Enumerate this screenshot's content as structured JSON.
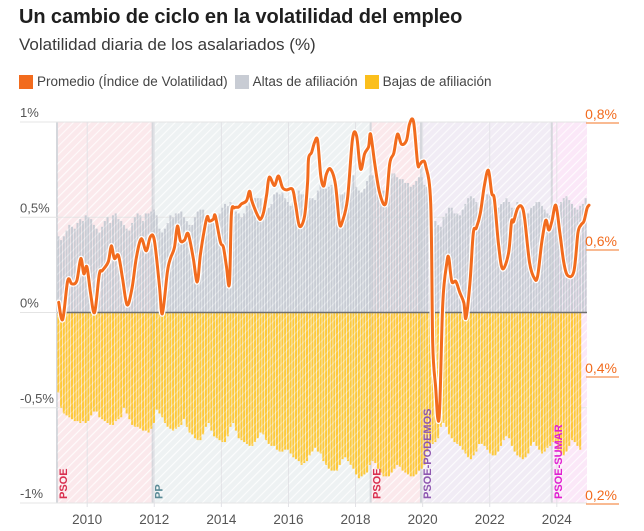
{
  "header": {
    "title": "Un cambio de ciclo en la volatilidad del empleo",
    "subtitle": "Volatilidad diaria de los asalariados (%)"
  },
  "legend": [
    {
      "label": "Promedio (Índice de Volatilidad)",
      "color": "#f26b1d"
    },
    {
      "label": "Altas de afiliación",
      "color": "#c8ccd4"
    },
    {
      "label": "Bajas de afiliación",
      "color": "#fbbf1c"
    }
  ],
  "chart_data": {
    "type": "bar+line",
    "title": "Un cambio de ciclo en la volatilidad del empleo",
    "subtitle": "Volatilidad diaria de los asalariados (%)",
    "x_range": [
      2009.1,
      2024.9
    ],
    "x_ticks": [
      2010,
      2012,
      2014,
      2016,
      2018,
      2020,
      2022,
      2024
    ],
    "left_axis": {
      "ticks": [
        1,
        0.5,
        0,
        -0.5,
        -1
      ],
      "tick_labels": [
        "1%",
        "0,5%",
        "0%",
        "-0,5%",
        "-1%"
      ],
      "range": [
        -1,
        1
      ]
    },
    "right_axis": {
      "ticks": [
        0.8,
        0.6,
        0.4,
        0.2
      ],
      "tick_labels": [
        "0,8%",
        "0,6%",
        "0,4%",
        "0,2%"
      ],
      "range": [
        0.2,
        0.8
      ],
      "color": "#f26b1d"
    },
    "grid": true,
    "legend_position": "top-left",
    "periods": [
      {
        "label": "PSOE",
        "start": 2009.1,
        "end": 2011.95,
        "color": "#d9304f",
        "shade": "#fbe9ec"
      },
      {
        "label": "PP",
        "start": 2011.95,
        "end": 2018.45,
        "color": "#5a8a96",
        "shade": "#eef2f3"
      },
      {
        "label": "PSOE",
        "start": 2018.45,
        "end": 2019.95,
        "color": "#d9304f",
        "shade": "#fbe9ec"
      },
      {
        "label": "PSOE-PODEMOS",
        "start": 2019.95,
        "end": 2023.85,
        "color": "#8e57b0",
        "shade": "#f1ecf5"
      },
      {
        "label": "PSOE-SUMAR",
        "start": 2023.85,
        "end": 2024.9,
        "color": "#e01fd0",
        "shade": "#fbe8f8"
      }
    ],
    "series": [
      {
        "name": "Altas de afiliación",
        "type": "bar",
        "axis": "left",
        "start": 2009.1,
        "step_years": 0.08333,
        "values": [
          0.4,
          0.38,
          0.4,
          0.43,
          0.46,
          0.45,
          0.44,
          0.47,
          0.49,
          0.48,
          0.51,
          0.5,
          0.49,
          0.46,
          0.44,
          0.42,
          0.45,
          0.48,
          0.5,
          0.47,
          0.51,
          0.52,
          0.49,
          0.48,
          0.46,
          0.44,
          0.43,
          0.47,
          0.5,
          0.52,
          0.51,
          0.48,
          0.52,
          0.52,
          0.53,
          0.54,
          0.51,
          0.44,
          0.42,
          0.44,
          0.47,
          0.51,
          0.5,
          0.52,
          0.52,
          0.53,
          0.5,
          0.48,
          0.46,
          0.46,
          0.5,
          0.53,
          0.54,
          0.54,
          0.51,
          0.49,
          0.48,
          0.47,
          0.46,
          0.52,
          0.55,
          0.57,
          0.56,
          0.58,
          0.57,
          0.53,
          0.52,
          0.5,
          0.52,
          0.56,
          0.61,
          0.62,
          0.6,
          0.6,
          0.6,
          0.55,
          0.54,
          0.55,
          0.57,
          0.62,
          0.63,
          0.62,
          0.63,
          0.6,
          0.58,
          0.56,
          0.58,
          0.62,
          0.64,
          0.62,
          0.62,
          0.62,
          0.6,
          0.6,
          0.59,
          0.64,
          0.68,
          0.67,
          0.65,
          0.66,
          0.67,
          0.68,
          0.66,
          0.62,
          0.62,
          0.63,
          0.66,
          0.7,
          0.72,
          0.66,
          0.64,
          0.63,
          0.65,
          0.69,
          0.72,
          0.72,
          0.7,
          0.66,
          0.66,
          0.64,
          0.66,
          0.68,
          0.73,
          0.73,
          0.71,
          0.7,
          0.7,
          0.68,
          0.68,
          0.66,
          0.67,
          0.69,
          0.71,
          0.71,
          0.67,
          0.66,
          0.66,
          0.57,
          0.48,
          0.46,
          0.45,
          0.5,
          0.52,
          0.55,
          0.55,
          0.52,
          0.52,
          0.51,
          0.54,
          0.57,
          0.6,
          0.61,
          0.6,
          0.58,
          0.55,
          0.57,
          0.59,
          0.62,
          0.65,
          0.6,
          0.57,
          0.55,
          0.57,
          0.58,
          0.6,
          0.58,
          0.55,
          0.55,
          0.58,
          0.57,
          0.55,
          0.53,
          0.52,
          0.55,
          0.56,
          0.58,
          0.58,
          0.56,
          0.54,
          0.52,
          0.51,
          0.52,
          0.55,
          0.56,
          0.58,
          0.6,
          0.61,
          0.59,
          0.57,
          0.55,
          0.54,
          0.56,
          0.57,
          0.6
        ]
      },
      {
        "name": "Bajas de afiliación",
        "type": "bar",
        "axis": "left",
        "start": 2009.1,
        "step_years": 0.08333,
        "values": [
          -0.42,
          -0.5,
          -0.53,
          -0.54,
          -0.55,
          -0.56,
          -0.57,
          -0.57,
          -0.58,
          -0.57,
          -0.58,
          -0.57,
          -0.54,
          -0.52,
          -0.52,
          -0.55,
          -0.56,
          -0.57,
          -0.58,
          -0.59,
          -0.59,
          -0.57,
          -0.56,
          -0.55,
          -0.5,
          -0.53,
          -0.56,
          -0.59,
          -0.6,
          -0.6,
          -0.61,
          -0.62,
          -0.62,
          -0.63,
          -0.61,
          -0.58,
          -0.51,
          -0.53,
          -0.55,
          -0.58,
          -0.6,
          -0.61,
          -0.62,
          -0.61,
          -0.6,
          -0.59,
          -0.56,
          -0.6,
          -0.63,
          -0.64,
          -0.66,
          -0.67,
          -0.67,
          -0.64,
          -0.6,
          -0.58,
          -0.62,
          -0.65,
          -0.66,
          -0.67,
          -0.68,
          -0.68,
          -0.65,
          -0.6,
          -0.58,
          -0.62,
          -0.66,
          -0.67,
          -0.68,
          -0.69,
          -0.7,
          -0.7,
          -0.68,
          -0.66,
          -0.63,
          -0.64,
          -0.67,
          -0.69,
          -0.7,
          -0.7,
          -0.72,
          -0.73,
          -0.73,
          -0.72,
          -0.72,
          -0.74,
          -0.76,
          -0.77,
          -0.78,
          -0.8,
          -0.79,
          -0.78,
          -0.75,
          -0.73,
          -0.71,
          -0.73,
          -0.74,
          -0.78,
          -0.8,
          -0.82,
          -0.83,
          -0.83,
          -0.83,
          -0.8,
          -0.77,
          -0.76,
          -0.78,
          -0.8,
          -0.82,
          -0.85,
          -0.87,
          -0.86,
          -0.85,
          -0.84,
          -0.8,
          -0.78,
          -0.79,
          -0.82,
          -0.84,
          -0.86,
          -0.86,
          -0.86,
          -0.84,
          -0.82,
          -0.8,
          -0.81,
          -0.83,
          -0.84,
          -0.85,
          -0.86,
          -0.86,
          -0.85,
          -0.83,
          -0.82,
          -0.8,
          -0.73,
          -0.7,
          -0.69,
          -0.68,
          -0.66,
          -0.6,
          -0.58,
          -0.6,
          -0.64,
          -0.66,
          -0.68,
          -0.69,
          -0.7,
          -0.72,
          -0.74,
          -0.76,
          -0.77,
          -0.75,
          -0.73,
          -0.69,
          -0.69,
          -0.7,
          -0.72,
          -0.74,
          -0.75,
          -0.75,
          -0.73,
          -0.7,
          -0.67,
          -0.65,
          -0.66,
          -0.7,
          -0.73,
          -0.75,
          -0.76,
          -0.77,
          -0.76,
          -0.74,
          -0.7,
          -0.68,
          -0.7,
          -0.72,
          -0.74,
          -0.73,
          -0.71,
          -0.7,
          -0.68,
          -0.68,
          -0.72,
          -0.74,
          -0.75,
          -0.73,
          -0.7,
          -0.67,
          -0.68,
          -0.7,
          -0.72
        ]
      },
      {
        "name": "Promedio (Índice de Volatilidad)",
        "type": "line",
        "axis": "right",
        "color": "#f26b1d",
        "points": [
          [
            2009.15,
            0.516
          ],
          [
            2009.27,
            0.489
          ],
          [
            2009.42,
            0.55
          ],
          [
            2009.54,
            0.545
          ],
          [
            2009.69,
            0.55
          ],
          [
            2009.81,
            0.585
          ],
          [
            2009.9,
            0.561
          ],
          [
            2009.99,
            0.572
          ],
          [
            2010.1,
            0.531
          ],
          [
            2010.22,
            0.5
          ],
          [
            2010.36,
            0.56
          ],
          [
            2010.45,
            0.566
          ],
          [
            2010.63,
            0.58
          ],
          [
            2010.72,
            0.605
          ],
          [
            2010.81,
            0.585
          ],
          [
            2010.93,
            0.59
          ],
          [
            2011.05,
            0.555
          ],
          [
            2011.19,
            0.512
          ],
          [
            2011.34,
            0.539
          ],
          [
            2011.46,
            0.585
          ],
          [
            2011.61,
            0.616
          ],
          [
            2011.76,
            0.597
          ],
          [
            2011.88,
            0.619
          ],
          [
            2012.0,
            0.614
          ],
          [
            2012.15,
            0.544
          ],
          [
            2012.24,
            0.498
          ],
          [
            2012.39,
            0.564
          ],
          [
            2012.48,
            0.585
          ],
          [
            2012.6,
            0.602
          ],
          [
            2012.69,
            0.636
          ],
          [
            2012.78,
            0.613
          ],
          [
            2012.9,
            0.614
          ],
          [
            2013.01,
            0.624
          ],
          [
            2013.16,
            0.586
          ],
          [
            2013.28,
            0.548
          ],
          [
            2013.37,
            0.589
          ],
          [
            2013.49,
            0.63
          ],
          [
            2013.58,
            0.651
          ],
          [
            2013.64,
            0.644
          ],
          [
            2013.76,
            0.647
          ],
          [
            2013.82,
            0.652
          ],
          [
            2013.97,
            0.611
          ],
          [
            2014.06,
            0.603
          ],
          [
            2014.15,
            0.573
          ],
          [
            2014.24,
            0.545
          ],
          [
            2014.3,
            0.655
          ],
          [
            2014.39,
            0.665
          ],
          [
            2014.51,
            0.666
          ],
          [
            2014.6,
            0.671
          ],
          [
            2014.75,
            0.676
          ],
          [
            2014.84,
            0.691
          ],
          [
            2014.9,
            0.677
          ],
          [
            2015.02,
            0.66
          ],
          [
            2015.11,
            0.65
          ],
          [
            2015.17,
            0.647
          ],
          [
            2015.26,
            0.658
          ],
          [
            2015.35,
            0.686
          ],
          [
            2015.43,
            0.713
          ],
          [
            2015.58,
            0.7
          ],
          [
            2015.7,
            0.715
          ],
          [
            2015.82,
            0.697
          ],
          [
            2015.94,
            0.693
          ],
          [
            2016.12,
            0.694
          ],
          [
            2016.21,
            0.671
          ],
          [
            2016.33,
            0.636
          ],
          [
            2016.48,
            0.652
          ],
          [
            2016.57,
            0.705
          ],
          [
            2016.6,
            0.743
          ],
          [
            2016.69,
            0.752
          ],
          [
            2016.78,
            0.768
          ],
          [
            2016.87,
            0.771
          ],
          [
            2016.96,
            0.716
          ],
          [
            2017.05,
            0.699
          ],
          [
            2017.13,
            0.718
          ],
          [
            2017.25,
            0.726
          ],
          [
            2017.4,
            0.702
          ],
          [
            2017.52,
            0.641
          ],
          [
            2017.61,
            0.644
          ],
          [
            2017.76,
            0.679
          ],
          [
            2017.91,
            0.773
          ],
          [
            2018.03,
            0.778
          ],
          [
            2018.15,
            0.726
          ],
          [
            2018.27,
            0.75
          ],
          [
            2018.39,
            0.761
          ],
          [
            2018.45,
            0.781
          ],
          [
            2018.57,
            0.735
          ],
          [
            2018.72,
            0.688
          ],
          [
            2018.9,
            0.672
          ],
          [
            2019.02,
            0.735
          ],
          [
            2019.14,
            0.751
          ],
          [
            2019.25,
            0.781
          ],
          [
            2019.37,
            0.765
          ],
          [
            2019.52,
            0.771
          ],
          [
            2019.61,
            0.797
          ],
          [
            2019.73,
            0.8
          ],
          [
            2019.85,
            0.735
          ],
          [
            2019.91,
            0.733
          ],
          [
            2020.0,
            0.738
          ],
          [
            2020.09,
            0.731
          ],
          [
            2020.24,
            0.672
          ],
          [
            2020.3,
            0.452
          ],
          [
            2020.39,
            0.381
          ],
          [
            2020.45,
            0.334
          ],
          [
            2020.51,
            0.35
          ],
          [
            2020.6,
            0.515
          ],
          [
            2020.72,
            0.578
          ],
          [
            2020.78,
            0.586
          ],
          [
            2020.87,
            0.549
          ],
          [
            2020.99,
            0.549
          ],
          [
            2021.11,
            0.531
          ],
          [
            2021.23,
            0.515
          ],
          [
            2021.29,
            0.491
          ],
          [
            2021.41,
            0.546
          ],
          [
            2021.51,
            0.625
          ],
          [
            2021.6,
            0.633
          ],
          [
            2021.72,
            0.656
          ],
          [
            2021.84,
            0.7
          ],
          [
            2021.96,
            0.724
          ],
          [
            2022.06,
            0.688
          ],
          [
            2022.14,
            0.678
          ],
          [
            2022.26,
            0.609
          ],
          [
            2022.38,
            0.569
          ],
          [
            2022.56,
            0.593
          ],
          [
            2022.65,
            0.643
          ],
          [
            2022.71,
            0.643
          ],
          [
            2022.83,
            0.664
          ],
          [
            2022.95,
            0.667
          ],
          [
            2023.04,
            0.648
          ],
          [
            2023.19,
            0.578
          ],
          [
            2023.34,
            0.553
          ],
          [
            2023.43,
            0.558
          ],
          [
            2023.55,
            0.61
          ],
          [
            2023.67,
            0.645
          ],
          [
            2023.76,
            0.63
          ],
          [
            2023.85,
            0.643
          ],
          [
            2023.97,
            0.669
          ],
          [
            2024.09,
            0.626
          ],
          [
            2024.21,
            0.578
          ],
          [
            2024.33,
            0.558
          ],
          [
            2024.51,
            0.565
          ],
          [
            2024.63,
            0.625
          ],
          [
            2024.72,
            0.638
          ],
          [
            2024.81,
            0.644
          ],
          [
            2024.9,
            0.664
          ],
          [
            2024.96,
            0.669
          ]
        ]
      }
    ]
  }
}
